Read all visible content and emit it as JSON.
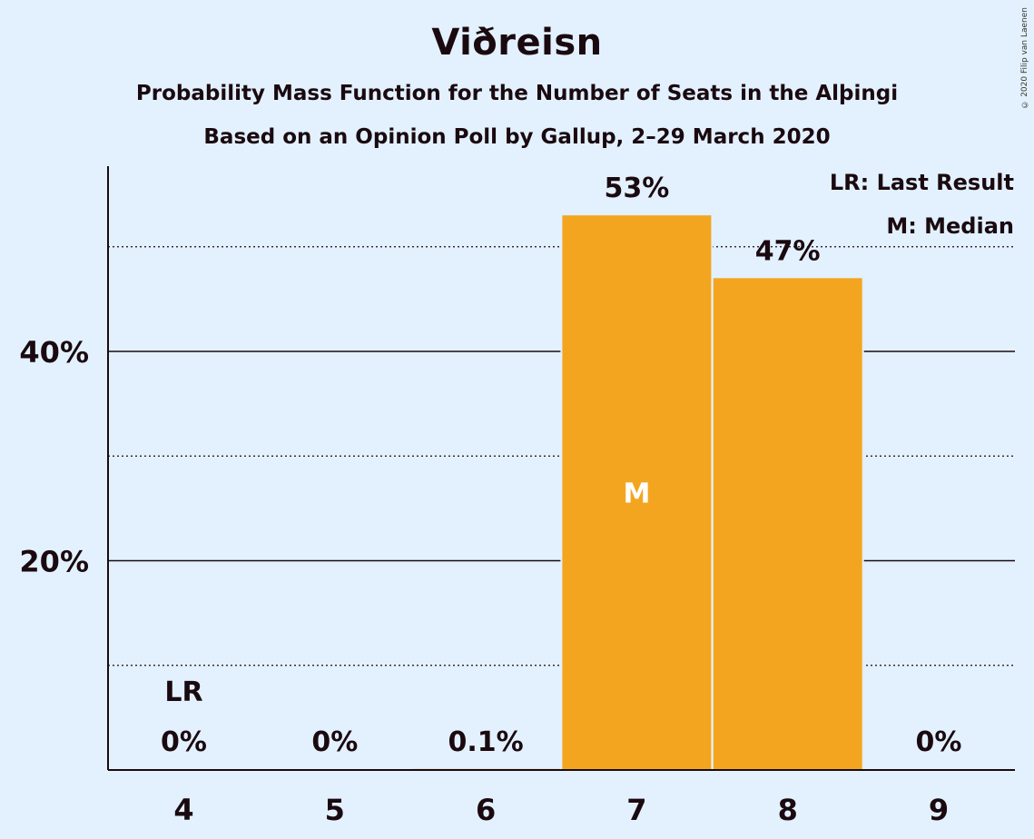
{
  "header": {
    "title": "Viðreisn",
    "subtitle": "Probability Mass Function for the Number of Seats in the Alþingi",
    "subtitle2": "Based on an Opinion Poll by Gallup, 2–29 March 2020",
    "copyright": "© 2020 Filip van Laenen"
  },
  "legend": {
    "lr": "LR: Last Result",
    "median": "M: Median"
  },
  "colors": {
    "background": "#e3f1fe",
    "bar": "#f4a51f",
    "text": "#1a0a10",
    "median_marker": "#ffffff"
  },
  "chart_data": {
    "type": "bar",
    "title": "Viðreisn",
    "categories": [
      4,
      5,
      6,
      7,
      8,
      9
    ],
    "values": [
      0,
      0,
      0.1,
      53,
      47,
      0
    ],
    "value_labels": [
      "0%",
      "0%",
      "0.1%",
      "53%",
      "47%",
      "0%"
    ],
    "ylim": [
      0,
      57.7
    ],
    "yticks": [
      20,
      40
    ],
    "ytick_labels": [
      "20%",
      "40%"
    ],
    "minor_gridlines": [
      10,
      30,
      50
    ],
    "last_result_seat": 4,
    "last_result_label": "LR",
    "median_seat": 7,
    "median_label": "M",
    "legend_position": "top-right"
  }
}
